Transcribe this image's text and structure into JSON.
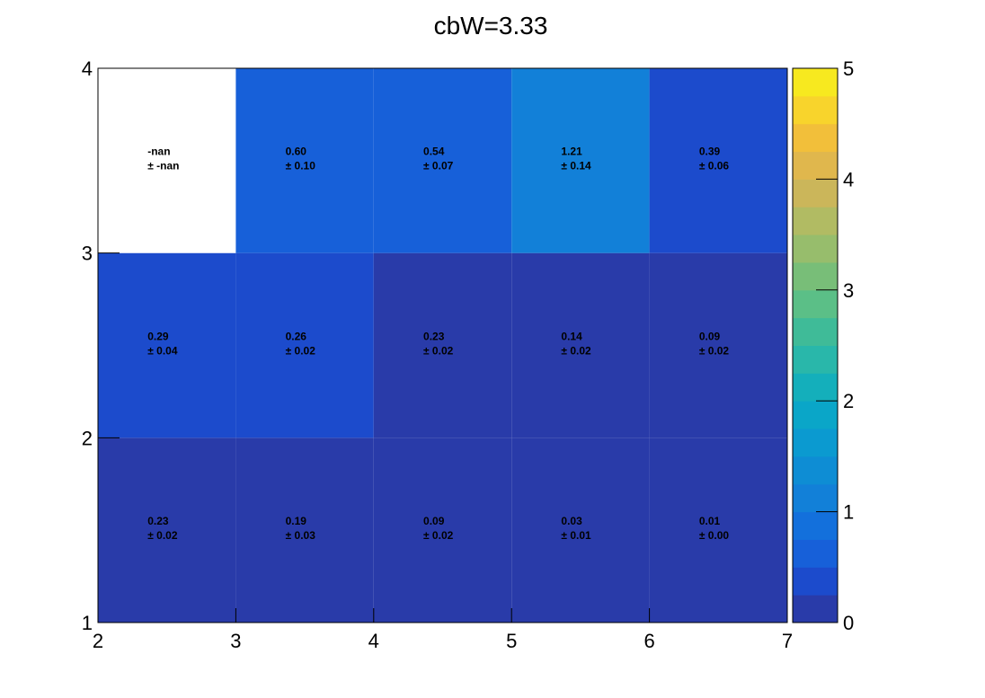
{
  "chart_data": {
    "type": "heatmap",
    "title": "cbW=3.33",
    "xlabel": "",
    "ylabel": "",
    "x_edges": [
      2,
      3,
      4,
      5,
      6,
      7
    ],
    "y_edges": [
      1,
      2,
      3,
      4
    ],
    "x_ticks": [
      "2",
      "3",
      "4",
      "5",
      "6",
      "7"
    ],
    "y_ticks": [
      "1",
      "2",
      "3",
      "4"
    ],
    "xlim": [
      2,
      7
    ],
    "ylim": [
      1,
      4
    ],
    "zlim": [
      0,
      5
    ],
    "colorbar_ticks": [
      "0",
      "1",
      "2",
      "3",
      "4",
      "5"
    ],
    "colorbar_levels": 20,
    "rows": [
      {
        "y_bin": [
          1,
          2
        ],
        "values": [
          0.23,
          0.19,
          0.09,
          0.03,
          0.01
        ],
        "labels": [
          "0.23",
          "0.19",
          "0.09",
          "0.03",
          "0.01"
        ],
        "errors": [
          "± 0.02",
          "± 0.03",
          "± 0.02",
          "± 0.01",
          "± 0.00"
        ]
      },
      {
        "y_bin": [
          2,
          3
        ],
        "values": [
          0.29,
          0.26,
          0.23,
          0.14,
          0.09
        ],
        "labels": [
          "0.29",
          "0.26",
          "0.23",
          "0.14",
          "0.09"
        ],
        "errors": [
          "± 0.04",
          "± 0.02",
          "± 0.02",
          "± 0.02",
          "± 0.02"
        ]
      },
      {
        "y_bin": [
          3,
          4
        ],
        "values": [
          null,
          0.6,
          0.54,
          1.21,
          0.39
        ],
        "labels": [
          "-nan",
          "0.60",
          "0.54",
          "1.21",
          "0.39"
        ],
        "errors": [
          "± -nan",
          "± 0.10",
          "± 0.07",
          "± 0.14",
          "± 0.06"
        ]
      }
    ],
    "palette": [
      "#293ba9",
      "#1c4bcc",
      "#1760d9",
      "#1370dc",
      "#1280d8",
      "#0e8dd4",
      "#0b9ad0",
      "#0aa6c8",
      "#14afbb",
      "#29b7aa",
      "#3fbb98",
      "#5bbf87",
      "#78be78",
      "#97bd6c",
      "#b1bb63",
      "#cbb65a",
      "#e0b74d",
      "#f2bf3a",
      "#f8d42c",
      "#f7e91f",
      "#f9fb0e"
    ],
    "grid": false,
    "legend": "none"
  }
}
